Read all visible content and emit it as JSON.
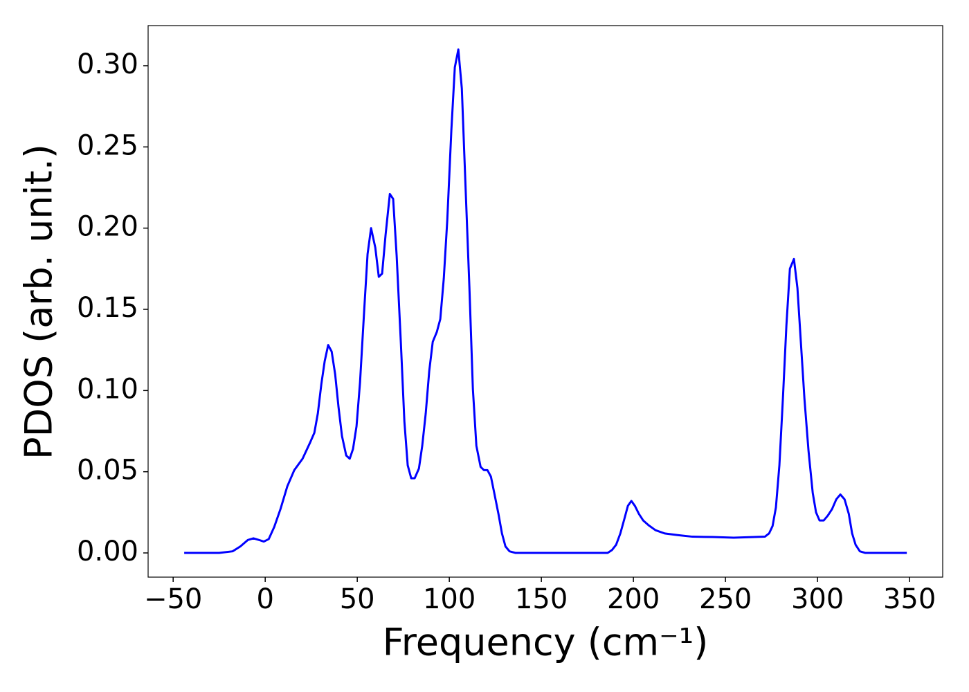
{
  "chart_data": {
    "type": "line",
    "x_label": "Frequency (cm⁻¹)",
    "y_label": "PDOS (arb. unit.)",
    "color": "#0000ff",
    "grid": false,
    "xlim": [
      -63.6,
      368
    ],
    "ylim": [
      -0.0149,
      0.3247
    ],
    "xticks": [
      {
        "value": -50,
        "label": "−50"
      },
      0,
      50,
      100,
      150,
      200,
      250,
      300,
      350
    ],
    "yticks": [
      {
        "value": 0,
        "label": "0.00"
      },
      {
        "value": 0.05,
        "label": "0.05"
      },
      {
        "value": 0.1,
        "label": "0.10"
      },
      {
        "value": 0.15,
        "label": "0.15"
      },
      {
        "value": 0.2,
        "label": "0.20"
      },
      {
        "value": 0.25,
        "label": "0.25"
      },
      {
        "value": 0.3,
        "label": "0.30"
      }
    ],
    "x": [
      -44,
      -25,
      -17.7,
      -13.5,
      -9.4,
      -6.4,
      -3.4,
      -0.8,
      1.9,
      4.9,
      8.3,
      12,
      15.8,
      20.3,
      24.4,
      26.7,
      28.6,
      30.5,
      32.3,
      34.2,
      36.1,
      38,
      39.8,
      41.7,
      44,
      45.9,
      47.7,
      49.6,
      51.5,
      53.8,
      55.6,
      57.5,
      59.8,
      61.7,
      63.5,
      65.4,
      67.7,
      69.5,
      71.4,
      73.7,
      75.6,
      77.4,
      79.3,
      81.2,
      83.5,
      85.3,
      87.2,
      89.1,
      91,
      93.2,
      95.1,
      97,
      98.9,
      101.1,
      103,
      104.9,
      106.8,
      108.6,
      110.9,
      112.8,
      114.7,
      117,
      118.8,
      120.7,
      122.6,
      124.4,
      126.7,
      128.6,
      130.5,
      132.7,
      136,
      186,
      188.3,
      190.6,
      192.9,
      195.1,
      197,
      198.9,
      200.8,
      203,
      205.3,
      208.3,
      212,
      217,
      224,
      232,
      243,
      254.5,
      265.8,
      271.4,
      273.7,
      275.6,
      277.4,
      279.3,
      281.2,
      283.1,
      285,
      287.2,
      289.1,
      291,
      292.9,
      295.1,
      297.4,
      299.2,
      301.1,
      303.4,
      305.6,
      307.9,
      310.2,
      312.4,
      314.7,
      317,
      318.8,
      320.7,
      323,
      326,
      348.5
    ],
    "values": [
      0,
      0,
      0.001,
      0.004,
      0.008,
      0.009,
      0.008,
      0.007,
      0.0085,
      0.016,
      0.027,
      0.041,
      0.051,
      0.058,
      0.068,
      0.074,
      0.086,
      0.104,
      0.118,
      0.128,
      0.124,
      0.11,
      0.09,
      0.072,
      0.06,
      0.058,
      0.064,
      0.078,
      0.105,
      0.15,
      0.184,
      0.2,
      0.188,
      0.17,
      0.172,
      0.196,
      0.221,
      0.218,
      0.183,
      0.129,
      0.081,
      0.054,
      0.046,
      0.046,
      0.052,
      0.066,
      0.086,
      0.112,
      0.13,
      0.136,
      0.144,
      0.169,
      0.205,
      0.26,
      0.299,
      0.31,
      0.286,
      0.232,
      0.164,
      0.101,
      0.066,
      0.053,
      0.051,
      0.051,
      0.047,
      0.037,
      0.024,
      0.012,
      0.004,
      0.001,
      0,
      0,
      0.0017,
      0.005,
      0.012,
      0.021,
      0.029,
      0.032,
      0.029,
      0.024,
      0.02,
      0.017,
      0.014,
      0.012,
      0.011,
      0.01,
      0.0098,
      0.0094,
      0.0098,
      0.01,
      0.012,
      0.0166,
      0.028,
      0.054,
      0.095,
      0.14,
      0.175,
      0.181,
      0.163,
      0.129,
      0.095,
      0.063,
      0.037,
      0.025,
      0.02,
      0.02,
      0.023,
      0.027,
      0.033,
      0.036,
      0.033,
      0.024,
      0.012,
      0.005,
      0.001,
      0,
      0
    ]
  }
}
